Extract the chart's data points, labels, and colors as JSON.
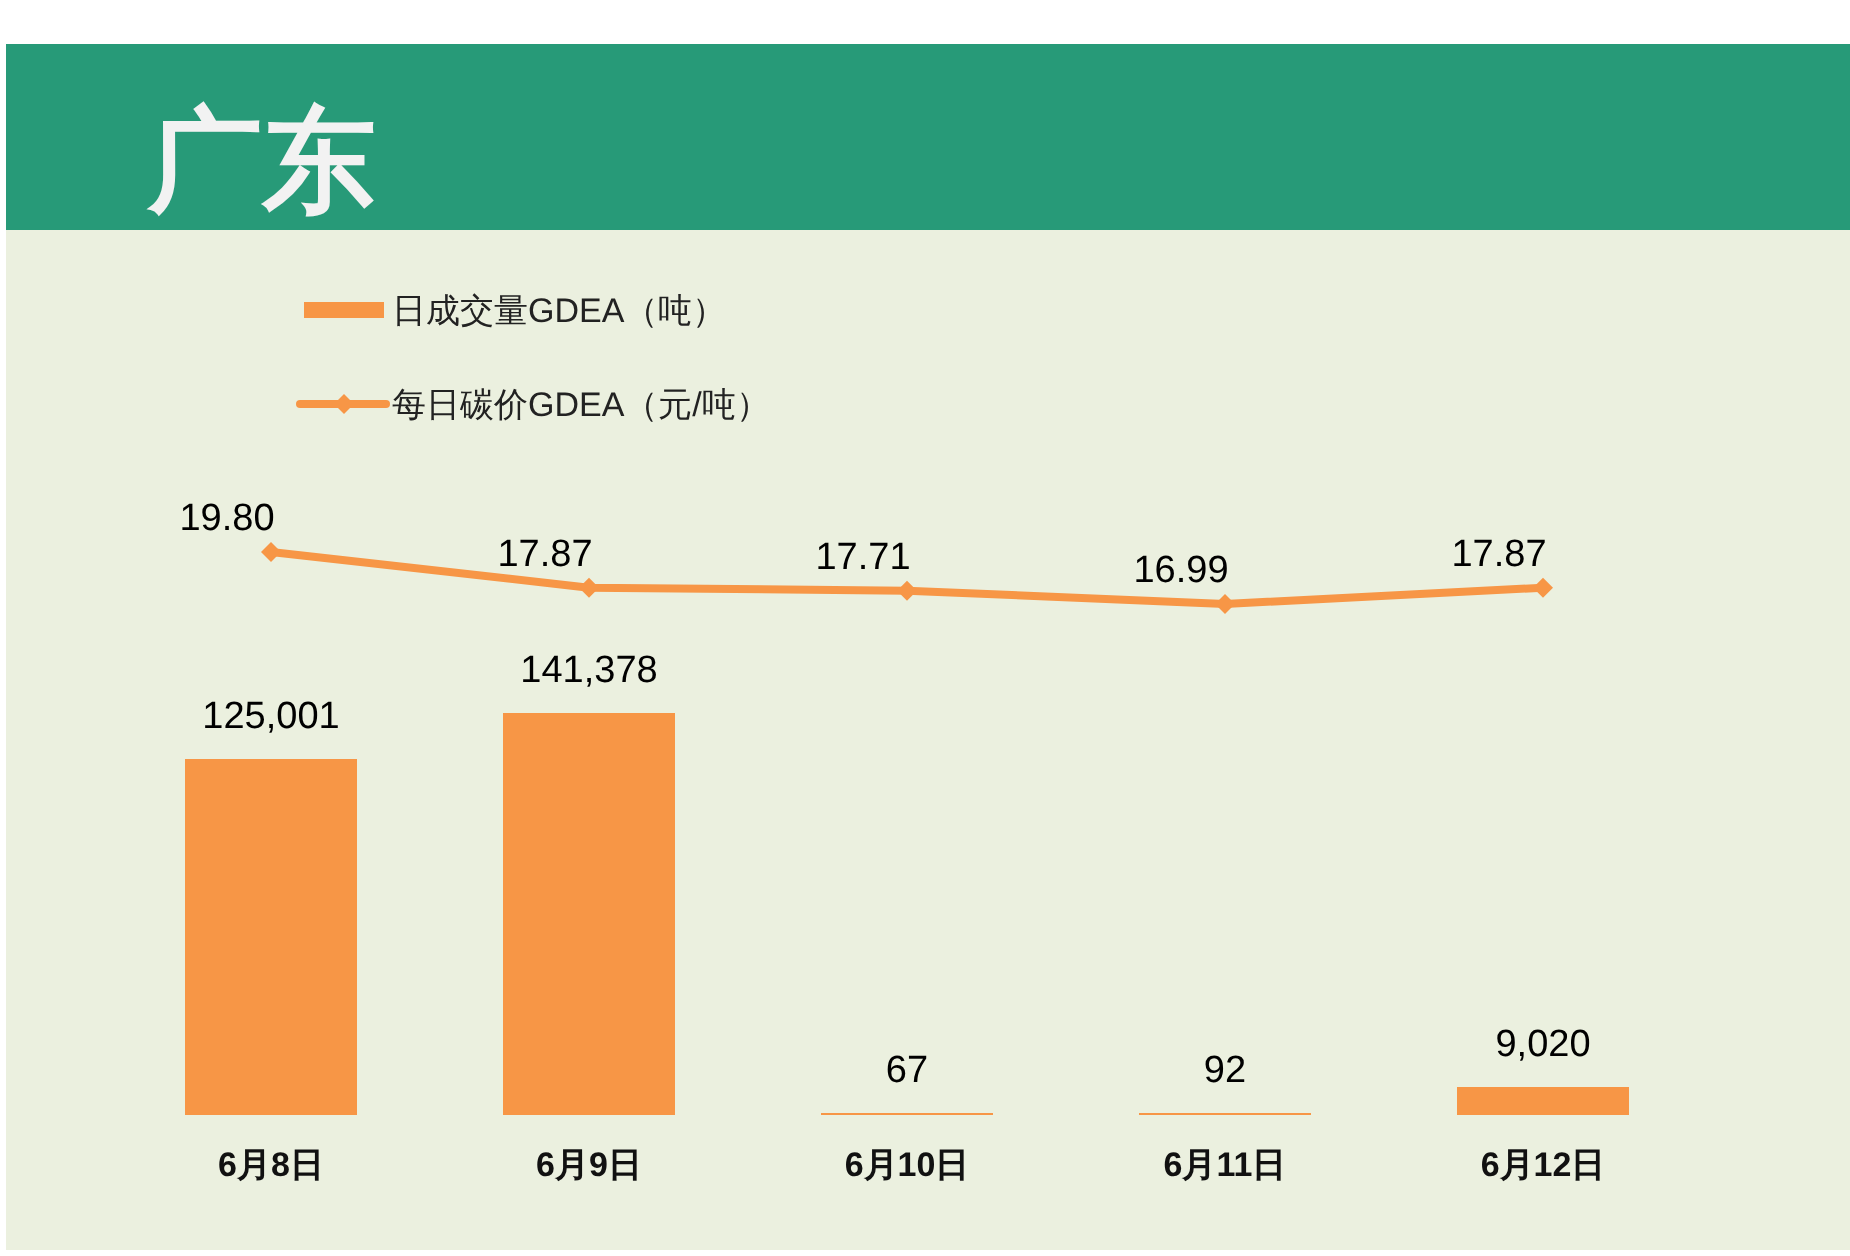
{
  "chart_data": [
    {
      "type": "line",
      "title": "广东",
      "categories": [
        null,
        null,
        null,
        null,
        null
      ],
      "series": [
        {
          "name": "每日碳价GDEA（元/吨）",
          "type": "line",
          "color": "#f79646",
          "values": [
            19.8,
            17.87,
            17.71,
            16.99,
            17.87
          ],
          "value_labels": [
            "19.80",
            "17.87",
            "17.71",
            "16.99",
            "17.87"
          ]
        }
      ],
      "legend": "top left",
      "marker": "diamond"
    },
    {
      "type": "bar",
      "categories": [
        "6月8日",
        "6月9日",
        "6月10日",
        "6月11日",
        "6月12日"
      ],
      "series": [
        {
          "name": "日成交量GDEA（吨）",
          "type": "bar",
          "color": "#f79646",
          "values": [
            125001,
            141378,
            67,
            92,
            9020
          ],
          "value_labels": [
            "125,001",
            "141,378",
            "67",
            "92",
            "9,020"
          ]
        }
      ],
      "legend": "top left",
      "tick_labels": "x"
    }
  ]
}
